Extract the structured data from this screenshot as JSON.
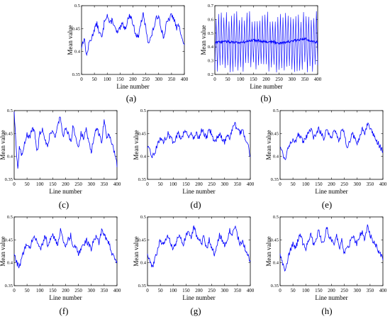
{
  "figure": {
    "line_color": "#0000ff"
  },
  "chart_data": [
    {
      "type": "line",
      "caption": "(a)",
      "xlabel": "Line number",
      "ylabel": "Mean value",
      "xlim": [
        0,
        400
      ],
      "ylim": [
        0.35,
        0.5
      ],
      "xticks": [
        0,
        50,
        100,
        150,
        200,
        250,
        300,
        350,
        400
      ],
      "yticks": [
        0.35,
        0.4,
        0.45,
        0.5
      ],
      "ytick_labels": [
        "0.35",
        "0.4",
        "0.45",
        "0.5"
      ],
      "series": [
        {
          "x": [
            0,
            10,
            20,
            30,
            40,
            50,
            60,
            70,
            80,
            90,
            100,
            110,
            120,
            130,
            140,
            150,
            160,
            170,
            180,
            190,
            200,
            210,
            220,
            230,
            240,
            250,
            260,
            270,
            280,
            290,
            300,
            310,
            320,
            330,
            340,
            350,
            360,
            370,
            380,
            390,
            400
          ],
          "y": [
            0.41,
            0.43,
            0.39,
            0.42,
            0.43,
            0.45,
            0.46,
            0.44,
            0.43,
            0.47,
            0.48,
            0.46,
            0.47,
            0.45,
            0.44,
            0.45,
            0.46,
            0.45,
            0.47,
            0.48,
            0.46,
            0.44,
            0.43,
            0.46,
            0.48,
            0.45,
            0.42,
            0.43,
            0.45,
            0.47,
            0.48,
            0.45,
            0.43,
            0.46,
            0.47,
            0.48,
            0.47,
            0.45,
            0.46,
            0.43,
            0.41
          ]
        }
      ]
    },
    {
      "type": "line",
      "caption": "(b)",
      "xlabel": "Line number",
      "ylabel": "Mean value",
      "xlim": [
        0,
        400
      ],
      "ylim": [
        0.2,
        0.7
      ],
      "xticks": [
        0,
        50,
        100,
        150,
        200,
        250,
        300,
        350,
        400
      ],
      "yticks": [
        0.2,
        0.3,
        0.4,
        0.5,
        0.6,
        0.7
      ],
      "ytick_labels": [
        "0.2",
        "0.3",
        "0.4",
        "0.5",
        "0.6",
        "0.7"
      ],
      "oscillation": {
        "period": 10,
        "high": 0.62,
        "low": 0.25
      },
      "series": [
        {
          "x": [
            0,
            50,
            100,
            150,
            200,
            250,
            300,
            350,
            400
          ],
          "y": [
            0.43,
            0.44,
            0.43,
            0.45,
            0.44,
            0.43,
            0.44,
            0.46,
            0.43
          ]
        }
      ]
    },
    {
      "type": "line",
      "caption": "(c)",
      "xlabel": "Line number",
      "ylabel": "Mean value",
      "xlim": [
        0,
        400
      ],
      "ylim": [
        0.35,
        0.5
      ],
      "xticks": [
        0,
        50,
        100,
        150,
        200,
        250,
        300,
        350,
        400
      ],
      "yticks": [
        0.35,
        0.4,
        0.45,
        0.5
      ],
      "ytick_labels": [
        "0.35",
        "0.4",
        "0.45",
        "0.5"
      ],
      "series": [
        {
          "x": [
            0,
            5,
            10,
            15,
            20,
            30,
            40,
            50,
            60,
            70,
            80,
            90,
            100,
            110,
            120,
            130,
            140,
            150,
            160,
            170,
            180,
            190,
            200,
            210,
            220,
            230,
            240,
            250,
            260,
            270,
            280,
            290,
            300,
            310,
            320,
            330,
            340,
            350,
            360,
            370,
            380,
            390,
            400
          ],
          "y": [
            0.5,
            0.45,
            0.4,
            0.37,
            0.42,
            0.4,
            0.43,
            0.45,
            0.44,
            0.46,
            0.45,
            0.41,
            0.45,
            0.46,
            0.44,
            0.42,
            0.45,
            0.46,
            0.44,
            0.47,
            0.49,
            0.44,
            0.46,
            0.45,
            0.43,
            0.47,
            0.44,
            0.42,
            0.45,
            0.44,
            0.46,
            0.43,
            0.41,
            0.44,
            0.46,
            0.45,
            0.43,
            0.48,
            0.44,
            0.45,
            0.43,
            0.41,
            0.38
          ]
        }
      ]
    },
    {
      "type": "line",
      "caption": "(d)",
      "xlabel": "Line number",
      "ylabel": "Mean value",
      "xlim": [
        0,
        400
      ],
      "ylim": [
        0.35,
        0.5
      ],
      "xticks": [
        0,
        50,
        100,
        150,
        200,
        250,
        300,
        350,
        400
      ],
      "yticks": [
        0.35,
        0.4,
        0.45,
        0.5
      ],
      "ytick_labels": [
        "0.35",
        "0.4",
        "0.45",
        "0.5"
      ],
      "series": [
        {
          "x": [
            0,
            10,
            20,
            30,
            40,
            50,
            60,
            70,
            80,
            90,
            100,
            110,
            120,
            130,
            140,
            150,
            160,
            170,
            180,
            190,
            200,
            210,
            220,
            230,
            240,
            250,
            260,
            270,
            280,
            290,
            300,
            310,
            320,
            330,
            340,
            350,
            360,
            370,
            380,
            390,
            400
          ],
          "y": [
            0.42,
            0.41,
            0.4,
            0.41,
            0.43,
            0.44,
            0.43,
            0.44,
            0.45,
            0.44,
            0.43,
            0.44,
            0.45,
            0.44,
            0.45,
            0.46,
            0.44,
            0.45,
            0.44,
            0.45,
            0.44,
            0.46,
            0.45,
            0.44,
            0.46,
            0.45,
            0.43,
            0.44,
            0.45,
            0.44,
            0.43,
            0.45,
            0.44,
            0.46,
            0.47,
            0.46,
            0.45,
            0.46,
            0.44,
            0.43,
            0.4
          ]
        }
      ]
    },
    {
      "type": "line",
      "caption": "(e)",
      "xlabel": "Line number",
      "ylabel": "Mean value",
      "xlim": [
        0,
        400
      ],
      "ylim": [
        0.35,
        0.5
      ],
      "xticks": [
        0,
        50,
        100,
        150,
        200,
        250,
        300,
        350,
        400
      ],
      "yticks": [
        0.35,
        0.4,
        0.45,
        0.5
      ],
      "ytick_labels": [
        "0.35",
        "0.4",
        "0.45",
        "0.5"
      ],
      "series": [
        {
          "x": [
            0,
            10,
            20,
            30,
            40,
            50,
            60,
            70,
            80,
            90,
            100,
            110,
            120,
            130,
            140,
            150,
            160,
            170,
            180,
            190,
            200,
            210,
            220,
            230,
            240,
            250,
            260,
            270,
            280,
            290,
            300,
            310,
            320,
            330,
            340,
            350,
            360,
            370,
            380,
            390,
            400
          ],
          "y": [
            0.42,
            0.41,
            0.39,
            0.42,
            0.43,
            0.44,
            0.43,
            0.45,
            0.44,
            0.43,
            0.44,
            0.45,
            0.46,
            0.44,
            0.45,
            0.46,
            0.45,
            0.44,
            0.46,
            0.45,
            0.44,
            0.46,
            0.45,
            0.43,
            0.46,
            0.45,
            0.42,
            0.43,
            0.45,
            0.44,
            0.43,
            0.44,
            0.46,
            0.45,
            0.47,
            0.46,
            0.45,
            0.44,
            0.43,
            0.42,
            0.41
          ]
        }
      ]
    },
    {
      "type": "line",
      "caption": "(f)",
      "xlabel": "Line number",
      "ylabel": "Mean value",
      "xlim": [
        0,
        400
      ],
      "ylim": [
        0.35,
        0.5
      ],
      "xticks": [
        0,
        50,
        100,
        150,
        200,
        250,
        300,
        350,
        400
      ],
      "yticks": [
        0.35,
        0.4,
        0.45,
        0.5
      ],
      "ytick_labels": [
        "0.35",
        "0.4",
        "0.45",
        "0.5"
      ],
      "series": [
        {
          "x": [
            0,
            10,
            20,
            30,
            40,
            50,
            60,
            70,
            80,
            90,
            100,
            110,
            120,
            130,
            140,
            150,
            160,
            170,
            180,
            190,
            200,
            210,
            220,
            230,
            240,
            250,
            260,
            270,
            280,
            290,
            300,
            310,
            320,
            330,
            340,
            350,
            360,
            370,
            380,
            390,
            400
          ],
          "y": [
            0.42,
            0.4,
            0.39,
            0.41,
            0.43,
            0.44,
            0.43,
            0.45,
            0.46,
            0.44,
            0.43,
            0.44,
            0.46,
            0.44,
            0.45,
            0.46,
            0.45,
            0.44,
            0.47,
            0.45,
            0.44,
            0.45,
            0.46,
            0.43,
            0.44,
            0.42,
            0.43,
            0.44,
            0.45,
            0.44,
            0.43,
            0.45,
            0.46,
            0.44,
            0.47,
            0.46,
            0.45,
            0.44,
            0.42,
            0.41,
            0.4
          ]
        }
      ]
    },
    {
      "type": "line",
      "caption": "(g)",
      "xlabel": "Line number",
      "ylabel": "Mean value",
      "xlim": [
        0,
        400
      ],
      "ylim": [
        0.35,
        0.5
      ],
      "xticks": [
        0,
        50,
        100,
        150,
        200,
        250,
        300,
        350,
        400
      ],
      "yticks": [
        0.35,
        0.4,
        0.45,
        0.5
      ],
      "ytick_labels": [
        "0.35",
        "0.4",
        "0.45",
        "0.5"
      ],
      "series": [
        {
          "x": [
            0,
            10,
            20,
            30,
            40,
            50,
            60,
            70,
            80,
            90,
            100,
            110,
            120,
            130,
            140,
            150,
            160,
            170,
            180,
            190,
            200,
            210,
            220,
            230,
            240,
            250,
            260,
            270,
            280,
            290,
            300,
            310,
            320,
            330,
            340,
            350,
            360,
            370,
            380,
            390,
            400
          ],
          "y": [
            0.42,
            0.4,
            0.39,
            0.41,
            0.43,
            0.45,
            0.44,
            0.45,
            0.46,
            0.44,
            0.43,
            0.44,
            0.46,
            0.45,
            0.44,
            0.46,
            0.47,
            0.45,
            0.48,
            0.46,
            0.45,
            0.44,
            0.46,
            0.43,
            0.45,
            0.43,
            0.42,
            0.44,
            0.46,
            0.45,
            0.44,
            0.45,
            0.47,
            0.46,
            0.48,
            0.46,
            0.44,
            0.45,
            0.43,
            0.42,
            0.4
          ]
        }
      ]
    },
    {
      "type": "line",
      "caption": "(h)",
      "xlabel": "Line number",
      "ylabel": "Mean value",
      "xlim": [
        0,
        400
      ],
      "ylim": [
        0.35,
        0.5
      ],
      "xticks": [
        0,
        50,
        100,
        150,
        200,
        250,
        300,
        350,
        400
      ],
      "yticks": [
        0.35,
        0.4,
        0.45,
        0.5
      ],
      "ytick_labels": [
        "0.35",
        "0.4",
        "0.45",
        "0.5"
      ],
      "series": [
        {
          "x": [
            0,
            10,
            20,
            30,
            40,
            50,
            60,
            70,
            80,
            90,
            100,
            110,
            120,
            130,
            140,
            150,
            160,
            170,
            180,
            190,
            200,
            210,
            220,
            230,
            240,
            250,
            260,
            270,
            280,
            290,
            300,
            310,
            320,
            330,
            340,
            350,
            360,
            370,
            380,
            390,
            400
          ],
          "y": [
            0.42,
            0.4,
            0.38,
            0.41,
            0.43,
            0.44,
            0.43,
            0.45,
            0.46,
            0.44,
            0.43,
            0.45,
            0.46,
            0.44,
            0.45,
            0.47,
            0.45,
            0.44,
            0.48,
            0.46,
            0.45,
            0.44,
            0.46,
            0.43,
            0.45,
            0.42,
            0.43,
            0.44,
            0.46,
            0.45,
            0.44,
            0.46,
            0.47,
            0.45,
            0.48,
            0.46,
            0.45,
            0.44,
            0.43,
            0.42,
            0.41
          ]
        }
      ]
    }
  ]
}
